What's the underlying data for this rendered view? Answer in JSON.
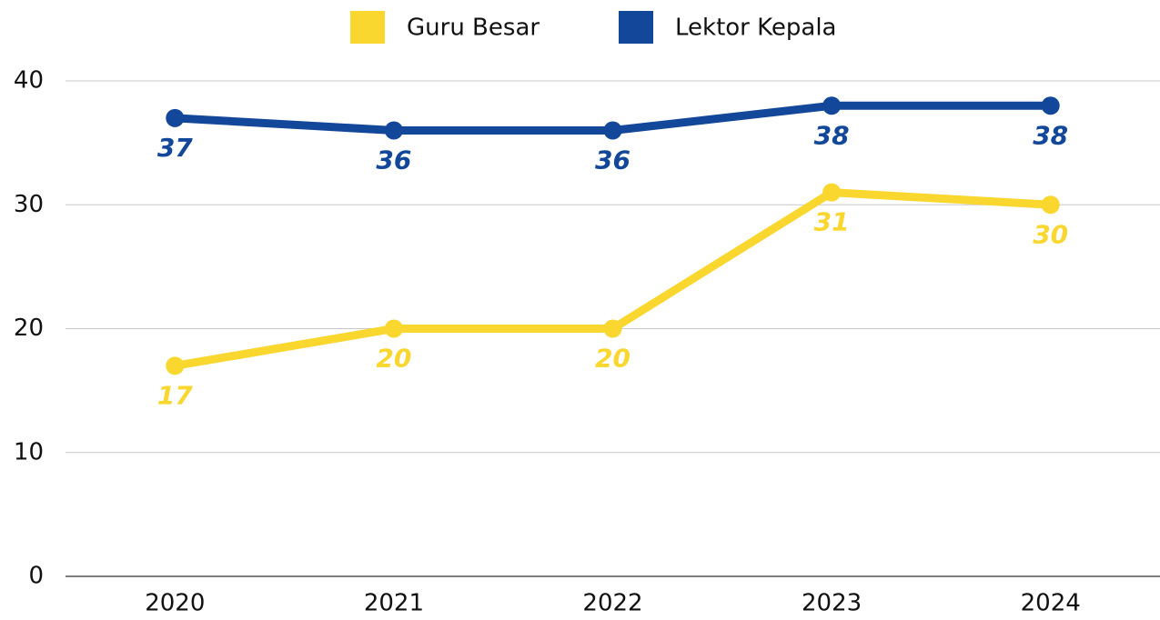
{
  "chart_data": {
    "type": "line",
    "categories": [
      "2020",
      "2021",
      "2022",
      "2023",
      "2024"
    ],
    "series": [
      {
        "name": "Guru Besar",
        "color": "#f9d72f",
        "values": [
          17,
          20,
          20,
          31,
          30
        ]
      },
      {
        "name": "Lektor Kepala",
        "color": "#13479a",
        "values": [
          37,
          36,
          36,
          38,
          38
        ]
      }
    ],
    "ylim": [
      0,
      40
    ],
    "yticks": [
      0,
      10,
      20,
      30,
      40
    ],
    "grid": true,
    "legend": "top"
  }
}
